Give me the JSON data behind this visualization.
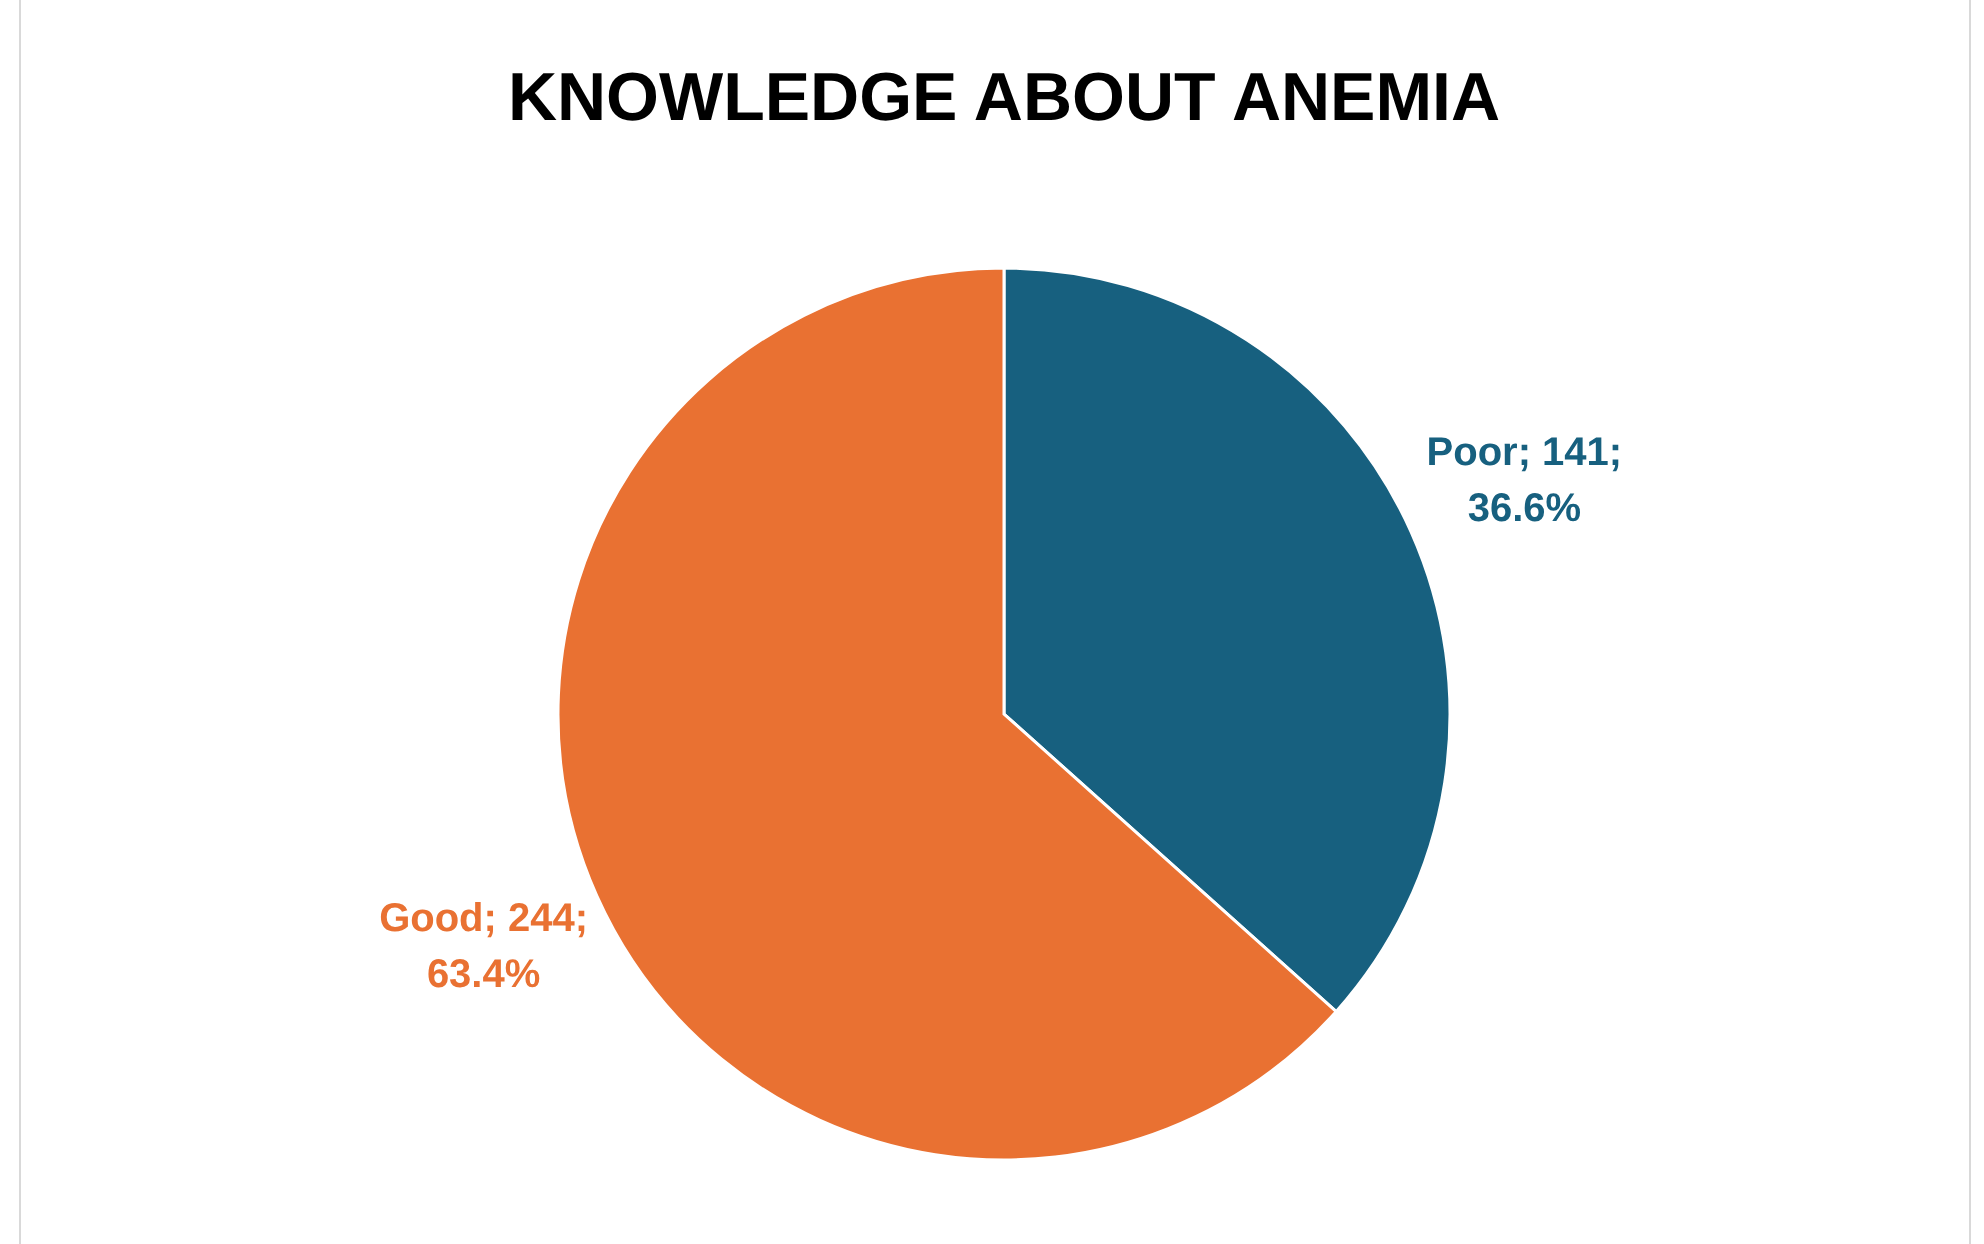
{
  "chart_data": {
    "type": "pie",
    "title": "KNOWLEDGE ABOUT ANEMIA",
    "categories": [
      "Poor",
      "Good"
    ],
    "values": [
      141,
      244
    ],
    "value_labels": [
      "; 141; 36.6%",
      "; 244; 63.4%"
    ],
    "colors": [
      "#17607f",
      "#e97132"
    ],
    "legend": false
  }
}
